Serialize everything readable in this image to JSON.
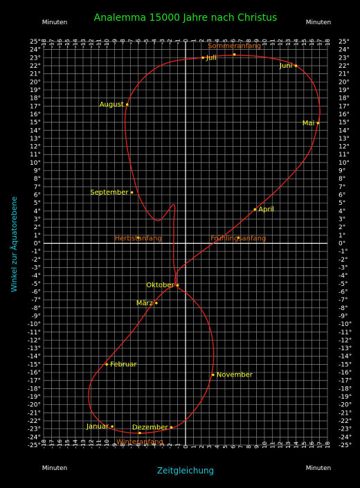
{
  "colors": {
    "background": "#000000",
    "grid": "#8a8a8a",
    "axis": "#ffffff",
    "tick_text": "#ffffff",
    "curve": "#e8241c",
    "title": "#22e322",
    "axis_label": "#20c8d8",
    "month_label": "#ffff33",
    "season_label": "#e07018",
    "marker": "#ffd400"
  },
  "chart_data": {
    "type": "line",
    "title": "Analemma  15000 Jahre nach Christus",
    "xlabel": "Zeitgleichung",
    "ylabel": "Winkel zur Äquatorebene",
    "minutes_label": "Minuten",
    "xlim": [
      -18,
      18
    ],
    "ylim": [
      -25,
      25
    ],
    "x_ticks": [
      "-18",
      "-17",
      "-16",
      "-15",
      "-14",
      "-13",
      "-12",
      "-11",
      "-10",
      "-9",
      "-8",
      "-7",
      "-6",
      "-5",
      "-4",
      "-3",
      "-2",
      "-1",
      "0",
      "1",
      "2",
      "3",
      "4",
      "5",
      "6",
      "7",
      "8",
      "9",
      "10",
      "11",
      "12",
      "13",
      "14",
      "15",
      "16",
      "17",
      "18"
    ],
    "y_ticks": [
      "25°",
      "24°",
      "23°",
      "22°",
      "21°",
      "20°",
      "19°",
      "18°",
      "17°",
      "16°",
      "15°",
      "14°",
      "13°",
      "12°",
      "11°",
      "10°",
      "9°",
      "8°",
      "7°",
      "6°",
      "5°",
      "4°",
      "3°",
      "2°",
      "1°",
      "0°",
      "-1°",
      "-2°",
      "-3°",
      "-4°",
      "-5°",
      "-6°",
      "-7°",
      "-8°",
      "-9°",
      "-10°",
      "-11°",
      "-12°",
      "-13°",
      "-14°",
      "-15°",
      "-16°",
      "-17°",
      "-18°",
      "-19°",
      "-20°",
      "-21°",
      "-22°",
      "-23°",
      "-24°",
      "-25°"
    ],
    "grid": true,
    "series": [
      {
        "points": [
          [
            -1.5,
            4.8
          ],
          [
            -3.5,
            2.8
          ],
          [
            -5.5,
            5.0
          ],
          [
            -6.8,
            9.0
          ],
          [
            -7.6,
            13.5
          ],
          [
            -7.4,
            17.2
          ],
          [
            -5.5,
            20.3
          ],
          [
            -2.5,
            22.3
          ],
          [
            2.0,
            23.0
          ],
          [
            6.0,
            23.3
          ],
          [
            10.5,
            23.0
          ],
          [
            14.0,
            22.0
          ],
          [
            16.2,
            19.8
          ],
          [
            17.0,
            17.0
          ],
          [
            16.8,
            14.9
          ],
          [
            15.5,
            11.0
          ],
          [
            12.0,
            7.0
          ],
          [
            8.8,
            4.2
          ],
          [
            6.0,
            1.8
          ],
          [
            3.5,
            0.0
          ],
          [
            1.0,
            -1.8
          ],
          [
            -1.0,
            -3.5
          ],
          [
            -1.2,
            -5.2
          ],
          [
            0.5,
            -6.5
          ],
          [
            2.5,
            -9.0
          ],
          [
            3.5,
            -12.5
          ],
          [
            3.3,
            -16.3
          ],
          [
            2.0,
            -19.5
          ],
          [
            -0.5,
            -22.3
          ],
          [
            -3.5,
            -23.3
          ],
          [
            -6.8,
            -23.5
          ],
          [
            -9.8,
            -22.8
          ],
          [
            -11.8,
            -21.0
          ],
          [
            -12.3,
            -18.8
          ],
          [
            -11.8,
            -16.8
          ],
          [
            -10.2,
            -14.8
          ],
          [
            -6.8,
            -11.0
          ],
          [
            -4.2,
            -7.5
          ],
          [
            -2.5,
            -5.8
          ],
          [
            -1.2,
            -4.9
          ],
          [
            -1.5,
            -2.5
          ],
          [
            -1.5,
            0.0
          ],
          [
            -1.5,
            2.5
          ],
          [
            -1.5,
            4.8
          ]
        ]
      }
    ],
    "month_markers": [
      {
        "label": "Juli",
        "x": 2.2,
        "y": 23.0,
        "anchor": "right"
      },
      {
        "label": "Juni",
        "x": 14.0,
        "y": 22.0,
        "anchor": "left"
      },
      {
        "label": "August",
        "x": -7.4,
        "y": 17.2,
        "anchor": "left"
      },
      {
        "label": "Mai",
        "x": 16.8,
        "y": 14.9,
        "anchor": "left"
      },
      {
        "label": "September",
        "x": -6.8,
        "y": 6.3,
        "anchor": "left"
      },
      {
        "label": "April",
        "x": 8.8,
        "y": 4.2,
        "anchor": "right"
      },
      {
        "label": "Oktober",
        "x": -1.0,
        "y": -5.2,
        "anchor": "left"
      },
      {
        "label": "März",
        "x": -3.7,
        "y": -7.4,
        "anchor": "left"
      },
      {
        "label": "Februar",
        "x": -10.0,
        "y": -15.0,
        "anchor": "right"
      },
      {
        "label": "November",
        "x": 3.5,
        "y": -16.3,
        "anchor": "right"
      },
      {
        "label": "Januar",
        "x": -9.3,
        "y": -22.7,
        "anchor": "left"
      },
      {
        "label": "Dezember",
        "x": -1.8,
        "y": -22.8,
        "anchor": "left"
      }
    ],
    "season_markers": [
      {
        "label": "Sommeranfang",
        "x": 6.2,
        "y": 23.4,
        "anchor": "above"
      },
      {
        "label": "Frühlingsanfang",
        "x": 6.7,
        "y": 0.7,
        "anchor": "center"
      },
      {
        "label": "Herbstanfang",
        "x": -6.0,
        "y": 0.7,
        "anchor": "center"
      },
      {
        "label": "Winteranfang",
        "x": -5.8,
        "y": -23.5,
        "anchor": "below"
      }
    ]
  }
}
